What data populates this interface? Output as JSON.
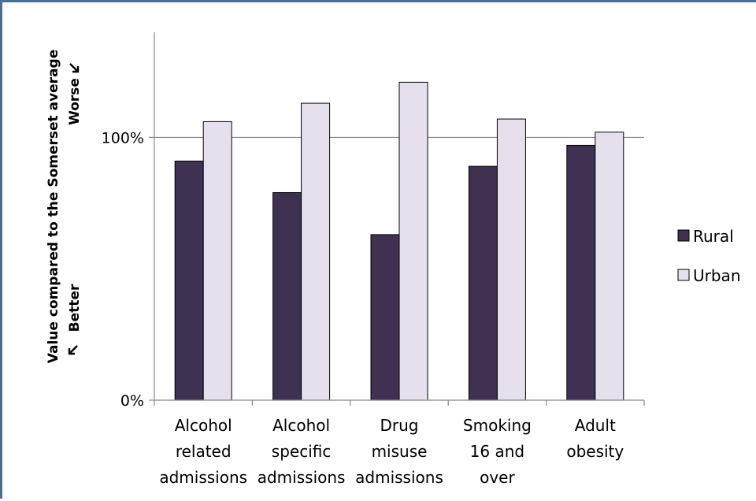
{
  "chart_data": {
    "type": "bar",
    "categories": [
      [
        "Alcohol",
        "related",
        "admissions"
      ],
      [
        "Alcohol",
        "specific",
        "admissions"
      ],
      [
        "Drug",
        "misuse",
        "admissions"
      ],
      [
        "Smoking",
        "16 and",
        "over"
      ],
      [
        "Adult",
        "obesity"
      ]
    ],
    "series": [
      {
        "name": "Rural",
        "color": "#3f3152",
        "values": [
          91,
          79,
          63,
          89,
          97
        ]
      },
      {
        "name": "Urban",
        "color": "#e6e0ec",
        "values": [
          106,
          113,
          121,
          107,
          102
        ]
      }
    ],
    "ylim": [
      0,
      140
    ],
    "yticks": [
      {
        "value": 0,
        "label": "0%"
      },
      {
        "value": 100,
        "label": "100%"
      }
    ],
    "ylabel": {
      "line1": "Value compared to the Somerset average",
      "better": "Better",
      "worse": "Worse"
    },
    "reference_line": 100,
    "legend_position": "right"
  }
}
